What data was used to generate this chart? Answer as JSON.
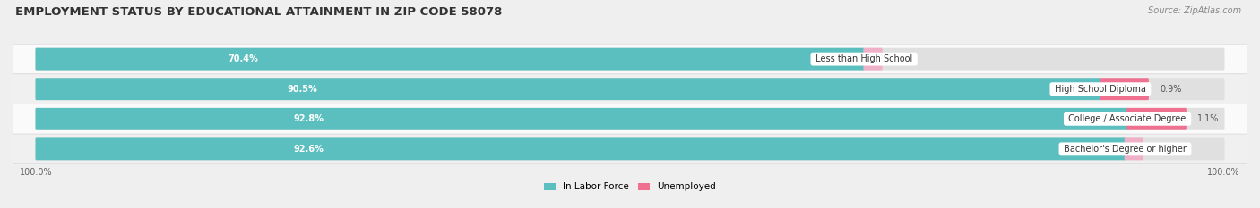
{
  "title": "EMPLOYMENT STATUS BY EDUCATIONAL ATTAINMENT IN ZIP CODE 58078",
  "source": "Source: ZipAtlas.com",
  "categories": [
    "Less than High School",
    "High School Diploma",
    "College / Associate Degree",
    "Bachelor's Degree or higher"
  ],
  "in_labor_force": [
    70.4,
    90.5,
    92.8,
    92.6
  ],
  "unemployed": [
    0.0,
    0.9,
    1.1,
    0.0
  ],
  "labor_force_color": "#5BBFBF",
  "unemployed_color": "#F07090",
  "background_color": "#efefef",
  "row_colors": [
    "#fafafa",
    "#f0f0f0",
    "#fafafa",
    "#f0f0f0"
  ],
  "bar_bg_color": "#e0e0e0",
  "xlim_max": 103,
  "left_label": "100.0%",
  "right_label": "100.0%",
  "bar_height": 0.62,
  "lf_text_color": "#ffffff",
  "pct_text_color": "#555555",
  "cat_text_color": "#333333",
  "title_fontsize": 9.5,
  "source_fontsize": 7,
  "bar_fontsize": 7,
  "cat_fontsize": 7,
  "legend_fontsize": 7.5
}
